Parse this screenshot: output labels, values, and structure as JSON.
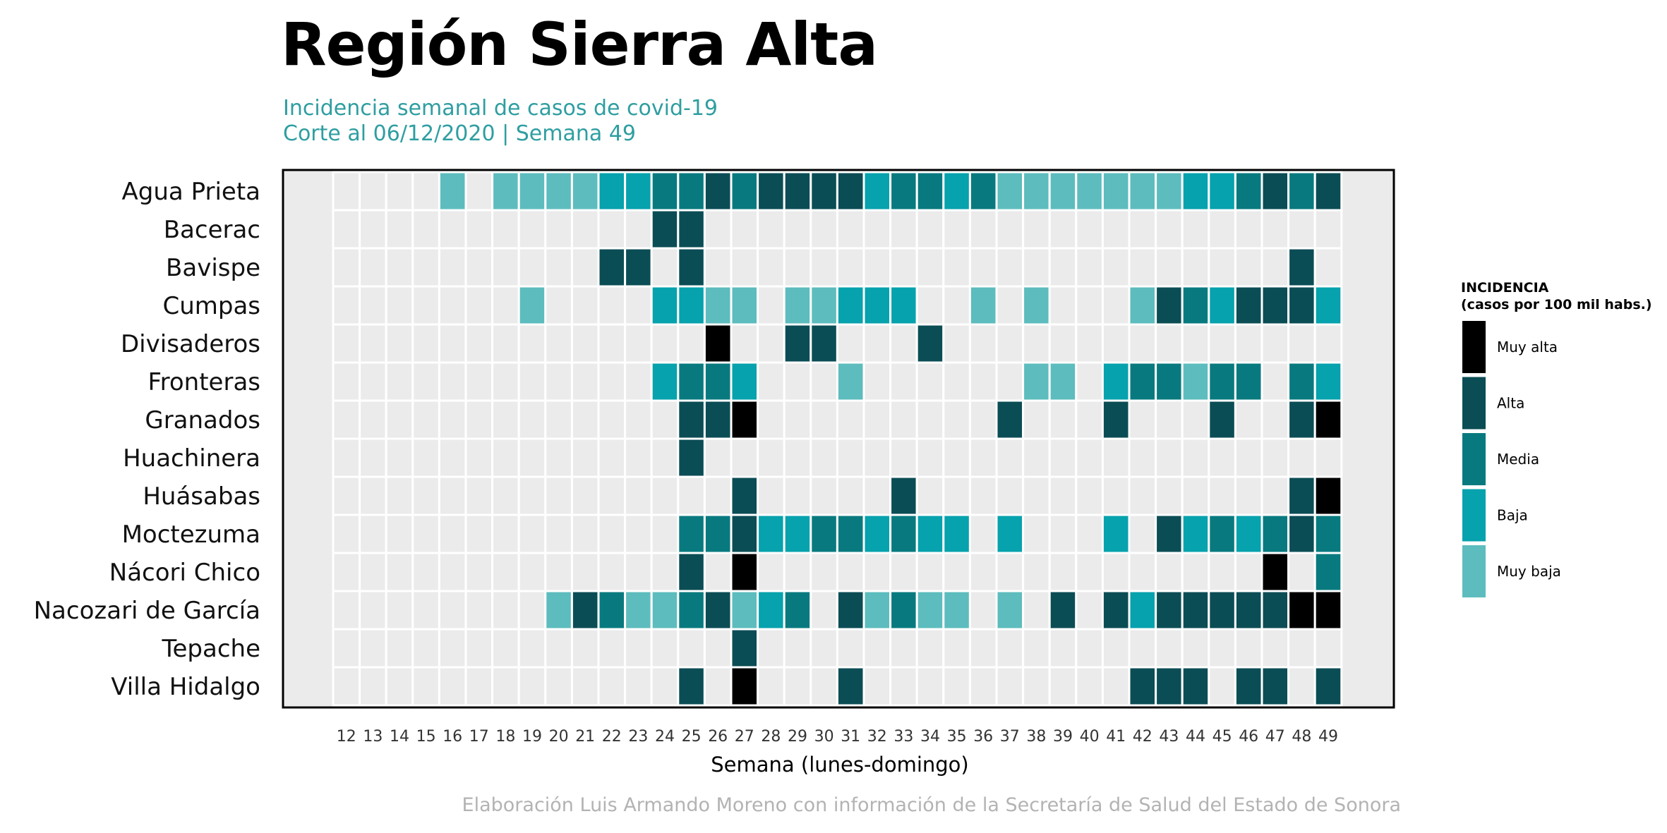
{
  "title": "Región Sierra Alta",
  "subtitle_line1": "Incidencia semanal de casos de covid-19",
  "subtitle_line2": "Corte al 06/12/2020 | Semana 49",
  "caption": "Elaboración Luis Armando Moreno con información de la Secretaría de Salud del Estado de Sonora",
  "legend": {
    "title_line1": "INCIDENCIA",
    "title_line2": "(casos por 100 mil habs.)",
    "levels": [
      {
        "label": "Muy alta",
        "color": "#000000"
      },
      {
        "label": "Alta",
        "color": "#0b4d55"
      },
      {
        "label": "Media",
        "color": "#087a7f"
      },
      {
        "label": "Baja",
        "color": "#06a2ad"
      },
      {
        "label": "Muy baja",
        "color": "#5dbcbe"
      }
    ]
  },
  "colors": {
    "empty_cell": "#ebebeb",
    "panel_background": "#ebebeb",
    "subtitle": "#2f9ea1"
  },
  "chart_data": {
    "type": "heatmap",
    "xlabel": "Semana (lunes-domingo)",
    "x": [
      12,
      13,
      14,
      15,
      16,
      17,
      18,
      19,
      20,
      21,
      22,
      23,
      24,
      25,
      26,
      27,
      28,
      29,
      30,
      31,
      32,
      33,
      34,
      35,
      36,
      37,
      38,
      39,
      40,
      41,
      42,
      43,
      44,
      45,
      46,
      47,
      48,
      49
    ],
    "y": [
      "Agua Prieta",
      "Bacerac",
      "Bavispe",
      "Cumpas",
      "Divisaderos",
      "Fronteras",
      "Granados",
      "Huachinera",
      "Huásabas",
      "Moctezuma",
      "Nácori Chico",
      "Nacozari de García",
      "Tepache",
      "Villa Hidalgo"
    ],
    "value_encoding": {
      "0": "sin casos",
      "1": "Muy baja",
      "2": "Baja",
      "3": "Media",
      "4": "Alta",
      "5": "Muy alta"
    },
    "values": [
      [
        0,
        0,
        0,
        0,
        1,
        0,
        1,
        1,
        1,
        1,
        2,
        2,
        3,
        3,
        4,
        3,
        4,
        4,
        4,
        4,
        2,
        3,
        3,
        2,
        3,
        1,
        1,
        1,
        1,
        1,
        1,
        1,
        2,
        2,
        3,
        4,
        3,
        4
      ],
      [
        0,
        0,
        0,
        0,
        0,
        0,
        0,
        0,
        0,
        0,
        0,
        0,
        4,
        4,
        0,
        0,
        0,
        0,
        0,
        0,
        0,
        0,
        0,
        0,
        0,
        0,
        0,
        0,
        0,
        0,
        0,
        0,
        0,
        0,
        0,
        0,
        0,
        0
      ],
      [
        0,
        0,
        0,
        0,
        0,
        0,
        0,
        0,
        0,
        0,
        4,
        4,
        0,
        4,
        0,
        0,
        0,
        0,
        0,
        0,
        0,
        0,
        0,
        0,
        0,
        0,
        0,
        0,
        0,
        0,
        0,
        0,
        0,
        0,
        0,
        0,
        4,
        0
      ],
      [
        0,
        0,
        0,
        0,
        0,
        0,
        0,
        1,
        0,
        0,
        0,
        0,
        2,
        2,
        1,
        1,
        0,
        1,
        1,
        2,
        2,
        2,
        0,
        0,
        1,
        0,
        1,
        0,
        0,
        0,
        1,
        4,
        3,
        2,
        4,
        4,
        4,
        2
      ],
      [
        0,
        0,
        0,
        0,
        0,
        0,
        0,
        0,
        0,
        0,
        0,
        0,
        0,
        0,
        5,
        0,
        0,
        4,
        4,
        0,
        0,
        0,
        4,
        0,
        0,
        0,
        0,
        0,
        0,
        0,
        0,
        0,
        0,
        0,
        0,
        0,
        0,
        0
      ],
      [
        0,
        0,
        0,
        0,
        0,
        0,
        0,
        0,
        0,
        0,
        0,
        0,
        2,
        3,
        3,
        2,
        0,
        0,
        0,
        1,
        0,
        0,
        0,
        0,
        0,
        0,
        1,
        1,
        0,
        2,
        3,
        3,
        1,
        3,
        3,
        0,
        3,
        2
      ],
      [
        0,
        0,
        0,
        0,
        0,
        0,
        0,
        0,
        0,
        0,
        0,
        0,
        0,
        4,
        4,
        5,
        0,
        0,
        0,
        0,
        0,
        0,
        0,
        0,
        0,
        4,
        0,
        0,
        0,
        4,
        0,
        0,
        0,
        4,
        0,
        0,
        4,
        5
      ],
      [
        0,
        0,
        0,
        0,
        0,
        0,
        0,
        0,
        0,
        0,
        0,
        0,
        0,
        4,
        0,
        0,
        0,
        0,
        0,
        0,
        0,
        0,
        0,
        0,
        0,
        0,
        0,
        0,
        0,
        0,
        0,
        0,
        0,
        0,
        0,
        0,
        0,
        0
      ],
      [
        0,
        0,
        0,
        0,
        0,
        0,
        0,
        0,
        0,
        0,
        0,
        0,
        0,
        0,
        0,
        4,
        0,
        0,
        0,
        0,
        0,
        4,
        0,
        0,
        0,
        0,
        0,
        0,
        0,
        0,
        0,
        0,
        0,
        0,
        0,
        0,
        4,
        5
      ],
      [
        0,
        0,
        0,
        0,
        0,
        0,
        0,
        0,
        0,
        0,
        0,
        0,
        0,
        3,
        3,
        4,
        2,
        2,
        3,
        3,
        2,
        3,
        2,
        2,
        0,
        2,
        0,
        0,
        0,
        2,
        0,
        4,
        2,
        3,
        2,
        3,
        4,
        3
      ],
      [
        0,
        0,
        0,
        0,
        0,
        0,
        0,
        0,
        0,
        0,
        0,
        0,
        0,
        4,
        0,
        5,
        0,
        0,
        0,
        0,
        0,
        0,
        0,
        0,
        0,
        0,
        0,
        0,
        0,
        0,
        0,
        0,
        0,
        0,
        0,
        5,
        0,
        3
      ],
      [
        0,
        0,
        0,
        0,
        0,
        0,
        0,
        0,
        1,
        4,
        3,
        1,
        1,
        3,
        4,
        1,
        2,
        3,
        0,
        4,
        1,
        3,
        1,
        1,
        0,
        1,
        0,
        4,
        0,
        4,
        2,
        4,
        4,
        4,
        4,
        4,
        5,
        5
      ],
      [
        0,
        0,
        0,
        0,
        0,
        0,
        0,
        0,
        0,
        0,
        0,
        0,
        0,
        0,
        0,
        4,
        0,
        0,
        0,
        0,
        0,
        0,
        0,
        0,
        0,
        0,
        0,
        0,
        0,
        0,
        0,
        0,
        0,
        0,
        0,
        0,
        0,
        0
      ],
      [
        0,
        0,
        0,
        0,
        0,
        0,
        0,
        0,
        0,
        0,
        0,
        0,
        0,
        4,
        0,
        5,
        0,
        0,
        0,
        4,
        0,
        0,
        0,
        0,
        0,
        0,
        0,
        0,
        0,
        0,
        4,
        4,
        4,
        0,
        4,
        4,
        0,
        4
      ]
    ]
  }
}
